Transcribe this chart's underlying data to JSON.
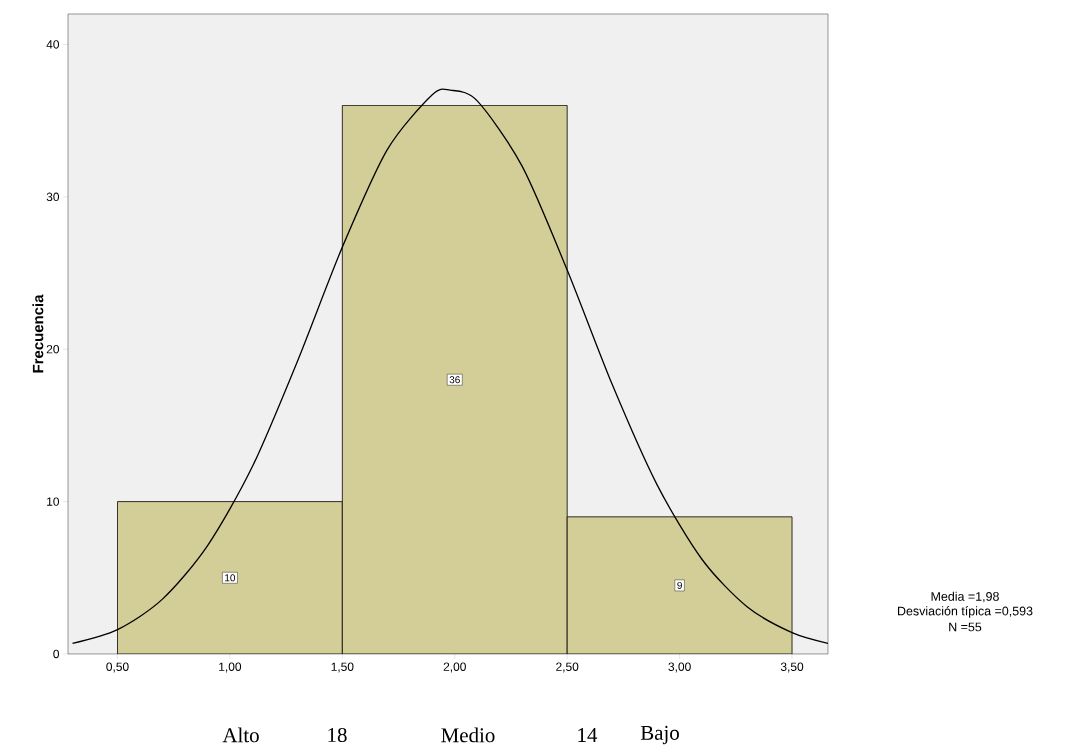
{
  "chart_data": {
    "type": "histogram",
    "ylabel": "Frecuencia",
    "bins": [
      0.5,
      1.5,
      2.5,
      3.5
    ],
    "values": [
      10,
      36,
      9
    ],
    "color": "#d3ce97",
    "value_labels": [
      "10",
      "36",
      "9"
    ],
    "series": [
      {
        "type": "line",
        "color": "#000000",
        "x": [
          0.3,
          0.5,
          0.7,
          0.9,
          1.1,
          1.3,
          1.5,
          1.7,
          1.9,
          1.98,
          2.1,
          2.3,
          2.5,
          2.7,
          2.9,
          3.1,
          3.3,
          3.5,
          3.66
        ],
        "values": [
          0.7,
          1.6,
          3.6,
          7.1,
          12.3,
          19.2,
          26.7,
          33.1,
          36.7,
          37.0,
          36.3,
          32.0,
          25.2,
          17.7,
          11.1,
          6.2,
          3.1,
          1.4,
          0.7
        ]
      }
    ],
    "xlim": [
      0.28,
      3.66
    ],
    "ylim": [
      0,
      42
    ],
    "xticks": [
      {
        "value": 0.5,
        "label": "0,50"
      },
      {
        "value": 1.0,
        "label": "1,00"
      },
      {
        "value": 1.5,
        "label": "1,50"
      },
      {
        "value": 2.0,
        "label": "2,00"
      },
      {
        "value": 2.5,
        "label": "2,50"
      },
      {
        "value": 3.0,
        "label": "3,00"
      },
      {
        "value": 3.5,
        "label": "3,50"
      }
    ],
    "yticks": [
      0,
      10,
      20,
      30,
      40
    ],
    "annotations": [
      "Media =1,98",
      "Desviación típica =0,593",
      "N =55",
      "Alto",
      "18",
      "Medio",
      "14",
      "Bajo"
    ]
  }
}
